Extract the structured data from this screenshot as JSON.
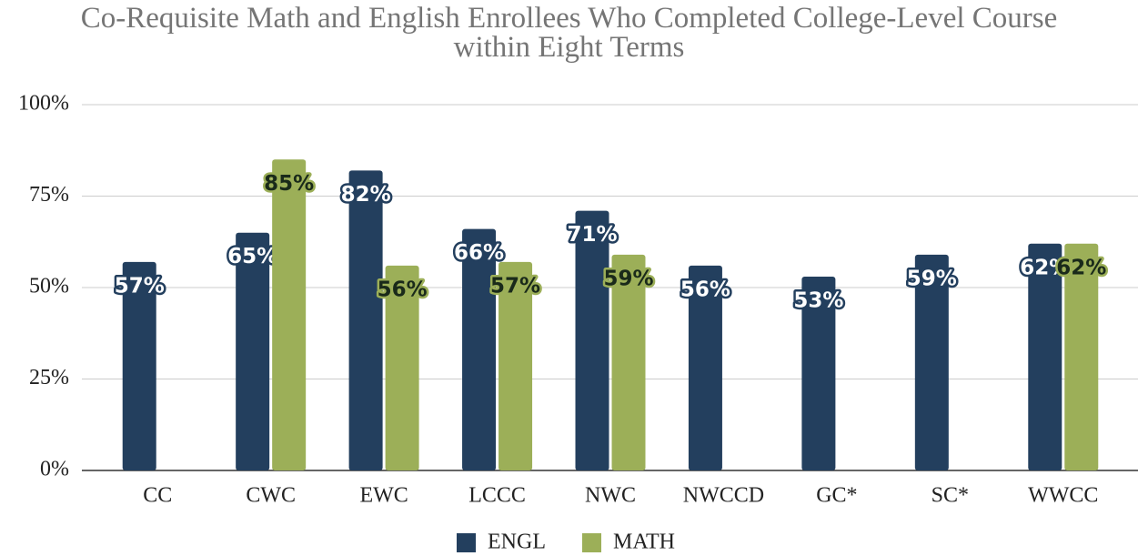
{
  "chart_data": {
    "type": "bar",
    "title": "Co-Requisite Math and English Enrollees Who Completed College-Level Course\nwithin Eight Terms",
    "categories": [
      "CC",
      "CWC",
      "EWC",
      "LCCC",
      "NWC",
      "NWCCD",
      "GC*",
      "SC*",
      "WWCC"
    ],
    "series": [
      {
        "name": "ENGL",
        "color": "#233f5e",
        "values": [
          57,
          65,
          82,
          66,
          71,
          56,
          53,
          59,
          62
        ],
        "value_labels": [
          "57%",
          "65%",
          "82%",
          "66%",
          "71%",
          "56%",
          "53%",
          "59%",
          "62%"
        ]
      },
      {
        "name": "MATH",
        "color": "#9caf58",
        "values": [
          null,
          85,
          56,
          57,
          59,
          null,
          null,
          null,
          62
        ],
        "value_labels": [
          null,
          "85%",
          "56%",
          "57%",
          "59%",
          null,
          null,
          null,
          "62%"
        ]
      }
    ],
    "ylim": [
      0,
      100
    ],
    "yticks": [
      {
        "value": 0,
        "label": "0%"
      },
      {
        "value": 25,
        "label": "25%"
      },
      {
        "value": 50,
        "label": "50%"
      },
      {
        "value": 75,
        "label": "75%"
      },
      {
        "value": 100,
        "label": "100%"
      }
    ],
    "grid": true,
    "legend": "bottom"
  }
}
